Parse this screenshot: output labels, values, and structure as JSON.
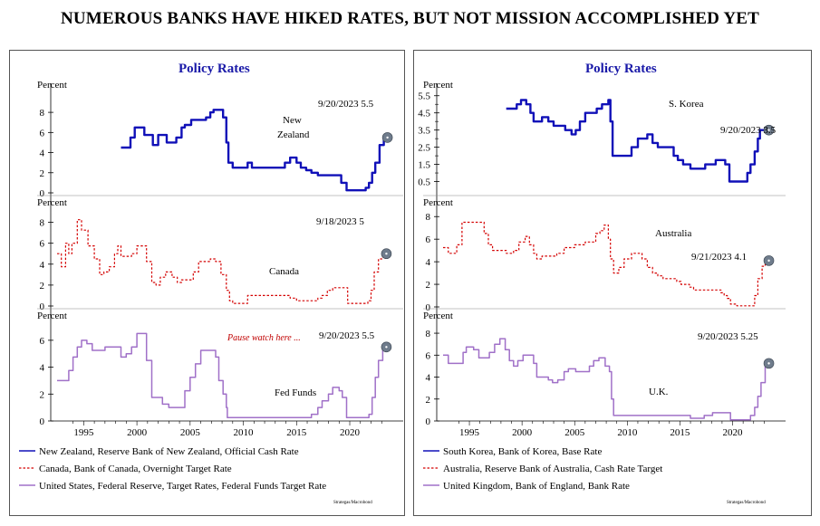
{
  "page_title": "NUMEROUS BANKS HAVE HIKED RATES, BUT NOT MISSION ACCOMPLISHED YET",
  "colors": {
    "blue": "#1010b8",
    "red": "#d40000",
    "purple": "#a070c8",
    "marker": "#6f7c8c",
    "title_blue": "#1a1aa8"
  },
  "chart_data": [
    {
      "panel": "left",
      "title": "Policy Rates",
      "type": "line",
      "x_ticks": [
        "1995",
        "2000",
        "2005",
        "2010",
        "2015",
        "2020"
      ],
      "source": "Strategas/Macrobond",
      "legend": [
        "New Zealand, Reserve Bank of New Zealand, Official Cash Rate",
        "Canada, Bank of Canada, Overnight Target Rate",
        "United States, Federal Reserve, Target Rates, Federal Funds Target Rate"
      ],
      "subplots": [
        {
          "ylabel": "Percent",
          "ylim": [
            0,
            9
          ],
          "yticks": [
            "0",
            "2",
            "4",
            "6",
            "8"
          ],
          "series_label": "New\nZealand",
          "color": "blue",
          "style": "solid",
          "width": 2.4,
          "last": "9/20/2023 5.5",
          "x": [
            1999.0,
            1999.5,
            1999.9,
            2000.3,
            2000.9,
            2001.2,
            2001.6,
            2002.0,
            2002.5,
            2002.9,
            2003.3,
            2003.8,
            2004.2,
            2004.7,
            2005.0,
            2005.6,
            2006.0,
            2006.5,
            2007.0,
            2007.4,
            2007.7,
            2008.3,
            2008.6,
            2008.9,
            2009.1,
            2009.5,
            2010.5,
            2010.9,
            2011.3,
            2011.8,
            2014.0,
            2014.4,
            2014.9,
            2015.5,
            2015.9,
            2016.4,
            2016.9,
            2017.5,
            2019.3,
            2019.7,
            2020.2,
            2021.7,
            2022.0,
            2022.3,
            2022.6,
            2022.9,
            2023.3,
            2023.7
          ],
          "y": [
            4.5,
            4.5,
            5.5,
            6.5,
            6.5,
            5.75,
            5.75,
            4.75,
            5.75,
            5.75,
            5.0,
            5.0,
            5.5,
            6.5,
            6.75,
            7.25,
            7.25,
            7.25,
            7.5,
            8.0,
            8.25,
            8.25,
            7.5,
            5.0,
            3.0,
            2.5,
            2.5,
            3.0,
            2.5,
            2.5,
            2.5,
            3.0,
            3.5,
            3.0,
            2.5,
            2.25,
            2.0,
            1.75,
            1.75,
            1.0,
            0.25,
            0.25,
            0.5,
            1.0,
            2.0,
            3.0,
            4.75,
            5.5
          ]
        },
        {
          "ylabel": "Percent",
          "ylim": [
            0,
            9
          ],
          "yticks": [
            "0",
            "2",
            "4",
            "6",
            "8"
          ],
          "series_label": "Canada",
          "color": "red",
          "style": "dashed",
          "width": 1.2,
          "last": "9/18/2023 5",
          "x": [
            1993.0,
            1993.4,
            1993.8,
            1994.1,
            1994.4,
            1994.9,
            1995.3,
            1995.9,
            1996.5,
            1997.0,
            1997.4,
            1997.9,
            1998.4,
            1998.7,
            1999.0,
            1999.6,
            2000.0,
            2000.5,
            2000.9,
            2001.4,
            2001.9,
            2002.3,
            2002.7,
            2003.2,
            2003.8,
            2004.3,
            2004.7,
            2005.2,
            2005.8,
            2006.3,
            2006.8,
            2007.4,
            2007.9,
            2008.4,
            2008.9,
            2009.2,
            2009.5,
            2010.4,
            2010.9,
            2011.5,
            2014.9,
            2015.5,
            2015.9,
            2016.9,
            2017.5,
            2017.9,
            2018.4,
            2018.9,
            2019.5,
            2020.0,
            2020.3,
            2021.9,
            2022.2,
            2022.5,
            2022.8,
            2023.2,
            2023.6
          ],
          "y": [
            5.0,
            3.75,
            6.0,
            5.0,
            6.0,
            8.25,
            7.25,
            5.75,
            4.5,
            3.0,
            3.25,
            3.75,
            5.0,
            5.75,
            4.75,
            4.75,
            5.0,
            5.75,
            5.75,
            4.25,
            2.25,
            2.0,
            2.75,
            3.25,
            2.75,
            2.25,
            2.5,
            2.5,
            3.25,
            4.25,
            4.25,
            4.5,
            4.25,
            3.0,
            1.5,
            0.5,
            0.25,
            0.25,
            1.0,
            1.0,
            0.75,
            0.5,
            0.5,
            0.5,
            0.75,
            1.0,
            1.5,
            1.75,
            1.75,
            1.75,
            0.25,
            0.25,
            0.5,
            1.5,
            3.25,
            4.5,
            5.0
          ]
        },
        {
          "ylabel": "Percent",
          "ylim": [
            0,
            7
          ],
          "yticks": [
            "0",
            "2",
            "4",
            "6"
          ],
          "series_label": "Fed Funds",
          "color": "purple",
          "style": "solid",
          "width": 1.5,
          "last": "9/20/2023 5.5",
          "note": "Pause watch here ...",
          "x": [
            1993.0,
            1993.7,
            1994.1,
            1994.5,
            1994.9,
            1995.3,
            1995.8,
            1996.3,
            1997.2,
            1997.5,
            1998.6,
            1999.0,
            1999.5,
            2000.0,
            2000.5,
            2001.0,
            2001.4,
            2001.9,
            2002.3,
            2002.9,
            2003.5,
            2004.5,
            2005.0,
            2005.5,
            2006.0,
            2006.5,
            2007.6,
            2007.9,
            2008.2,
            2008.6,
            2008.9,
            2009.0,
            2015.9,
            2016.9,
            2017.5,
            2017.9,
            2018.5,
            2018.9,
            2019.5,
            2019.8,
            2020.2,
            2022.0,
            2022.3,
            2022.6,
            2022.9,
            2023.2,
            2023.6
          ],
          "y": [
            3.0,
            3.0,
            3.75,
            4.75,
            5.5,
            6.0,
            5.75,
            5.25,
            5.25,
            5.5,
            5.5,
            4.75,
            5.0,
            5.5,
            6.5,
            6.5,
            4.5,
            1.75,
            1.75,
            1.25,
            1.0,
            1.0,
            2.25,
            3.25,
            4.25,
            5.25,
            5.25,
            4.75,
            3.0,
            2.0,
            1.0,
            0.25,
            0.25,
            0.5,
            1.0,
            1.5,
            2.0,
            2.5,
            2.25,
            1.75,
            0.25,
            0.25,
            0.5,
            1.75,
            3.25,
            4.5,
            5.5
          ]
        }
      ]
    },
    {
      "panel": "right",
      "title": "Policy Rates",
      "type": "line",
      "x_ticks": [
        "1995",
        "2000",
        "2005",
        "2010",
        "2015",
        "2020"
      ],
      "source": "Strategas/Macrobond",
      "legend": [
        "South Korea, Bank of Korea, Base Rate",
        "Australia, Reserve Bank of Australia, Cash Rate Target",
        "United Kingdom, Bank of England, Bank Rate"
      ],
      "subplots": [
        {
          "ylabel": "Percent",
          "ylim": [
            0,
            5.75
          ],
          "yticks": [
            "0.5",
            "1.5",
            "2.5",
            "3.5",
            "4.5",
            "5.5"
          ],
          "ytick_vals": [
            0.5,
            1.5,
            2.5,
            3.5,
            4.5,
            5.5
          ],
          "minor_ticks": [
            1,
            2,
            3,
            4,
            5
          ],
          "series_label": "S. Korea",
          "color": "blue",
          "style": "solid",
          "width": 2.4,
          "last": "9/20/2023 3.5",
          "x": [
            1999.0,
            1999.5,
            2000.0,
            2000.4,
            2000.9,
            2001.3,
            2001.6,
            2001.9,
            2002.4,
            2003.0,
            2003.5,
            2004.0,
            2004.6,
            2005.2,
            2005.6,
            2006.0,
            2006.5,
            2007.0,
            2007.6,
            2008.1,
            2008.7,
            2008.9,
            2009.1,
            2010.4,
            2010.9,
            2011.5,
            2012.4,
            2012.9,
            2013.4,
            2014.5,
            2014.9,
            2015.3,
            2015.8,
            2016.5,
            2017.9,
            2018.9,
            2019.4,
            2019.8,
            2020.2,
            2021.5,
            2021.9,
            2022.2,
            2022.6,
            2022.9,
            2023.1,
            2023.6
          ],
          "y": [
            4.75,
            4.75,
            5.0,
            5.25,
            5.0,
            4.5,
            4.0,
            4.0,
            4.25,
            4.0,
            3.75,
            3.75,
            3.5,
            3.25,
            3.5,
            4.0,
            4.5,
            4.5,
            4.75,
            5.0,
            5.25,
            4.0,
            2.0,
            2.0,
            2.5,
            3.0,
            3.25,
            2.75,
            2.5,
            2.5,
            2.0,
            1.75,
            1.5,
            1.25,
            1.5,
            1.75,
            1.75,
            1.5,
            0.5,
            0.5,
            1.0,
            1.5,
            2.25,
            3.0,
            3.5,
            3.5
          ]
        },
        {
          "ylabel": "Percent",
          "ylim": [
            0,
            8.5
          ],
          "yticks": [
            "0",
            "2",
            "4",
            "6",
            "8"
          ],
          "series_label": "Australia",
          "color": "red",
          "style": "dashed",
          "width": 1.2,
          "last": "9/21/2023 4.1",
          "x": [
            1993.0,
            1993.5,
            1994.0,
            1994.3,
            1994.8,
            1996.5,
            1996.9,
            1997.3,
            1997.7,
            1998.7,
            1999.0,
            1999.7,
            2000.2,
            2000.8,
            2001.2,
            2001.6,
            2001.9,
            2002.4,
            2003.8,
            2004.5,
            2005.5,
            2006.5,
            2007.5,
            2007.9,
            2008.3,
            2008.7,
            2008.9,
            2009.2,
            2009.7,
            2010.2,
            2010.9,
            2011.4,
            2011.9,
            2012.4,
            2012.9,
            2013.4,
            2013.9,
            2015.2,
            2015.6,
            2016.4,
            2016.8,
            2019.4,
            2019.7,
            2020.0,
            2020.3,
            2020.9,
            2022.3,
            2022.6,
            2022.9,
            2023.3,
            2023.6
          ],
          "y": [
            5.25,
            4.75,
            4.75,
            5.5,
            7.5,
            7.5,
            6.5,
            5.5,
            5.0,
            5.0,
            4.75,
            5.0,
            5.75,
            6.25,
            5.5,
            4.75,
            4.25,
            4.5,
            4.75,
            5.25,
            5.5,
            5.75,
            6.5,
            6.75,
            7.25,
            6.0,
            4.25,
            3.0,
            3.5,
            4.25,
            4.75,
            4.75,
            4.25,
            3.5,
            3.0,
            2.75,
            2.5,
            2.25,
            2.0,
            1.75,
            1.5,
            1.25,
            1.0,
            0.75,
            0.25,
            0.1,
            0.1,
            1.0,
            2.5,
            3.6,
            4.1
          ]
        },
        {
          "ylabel": "Percent",
          "ylim": [
            0,
            8.5
          ],
          "yticks": [
            "0",
            "2",
            "4",
            "6",
            "8"
          ],
          "series_label": "U.K.",
          "color": "purple",
          "style": "solid",
          "width": 1.5,
          "last": "9/20/2023 5.25",
          "x": [
            1993.0,
            1993.5,
            1993.9,
            1994.5,
            1994.9,
            1995.2,
            1995.9,
            1996.4,
            1996.9,
            1997.4,
            1997.9,
            1998.4,
            1998.9,
            1999.3,
            1999.7,
            2000.1,
            2000.6,
            2001.1,
            2001.6,
            2001.9,
            2003.0,
            2003.4,
            2003.9,
            2004.5,
            2004.9,
            2005.6,
            2006.5,
            2006.9,
            2007.3,
            2007.8,
            2008.4,
            2008.8,
            2009.0,
            2009.2,
            2016.5,
            2017.8,
            2018.6,
            2020.1,
            2020.3,
            2021.9,
            2022.2,
            2022.6,
            2022.9,
            2023.2,
            2023.6
          ],
          "y": [
            6.0,
            5.25,
            5.25,
            5.25,
            6.25,
            6.75,
            6.5,
            5.75,
            5.75,
            6.25,
            7.0,
            7.5,
            6.5,
            5.5,
            5.0,
            5.5,
            6.0,
            6.0,
            5.25,
            4.0,
            3.75,
            3.5,
            3.75,
            4.5,
            4.75,
            4.5,
            4.5,
            5.0,
            5.5,
            5.75,
            5.0,
            4.5,
            2.0,
            0.5,
            0.25,
            0.5,
            0.75,
            0.75,
            0.1,
            0.1,
            0.5,
            1.25,
            2.25,
            3.5,
            5.25
          ]
        }
      ]
    }
  ]
}
